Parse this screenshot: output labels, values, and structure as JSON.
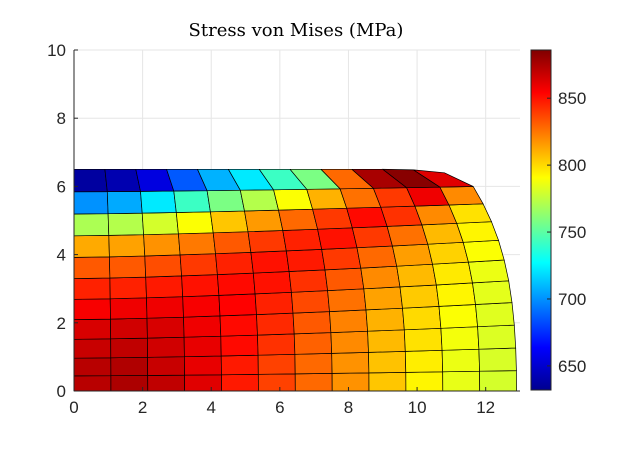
{
  "chart_data": {
    "type": "heatmap",
    "title": "Stress von Mises (MPa)",
    "xlabel": "",
    "ylabel": "",
    "xlim": [
      0,
      13
    ],
    "ylim": [
      0,
      10
    ],
    "x_ticks": [
      "0",
      "2",
      "4",
      "6",
      "8",
      "10",
      "12"
    ],
    "y_ticks": [
      "0",
      "2",
      "4",
      "6",
      "8",
      "10"
    ],
    "grid": true,
    "colormap": "jet",
    "colorbar": {
      "range": [
        632,
        886
      ],
      "ticks": [
        "650",
        "700",
        "750",
        "800",
        "850"
      ]
    },
    "mesh": {
      "description_rows": "rows from y=0 (bottom) to y=6.5 (top); values are element stress (MPa); each row has 12 elements from x=0 rightwards",
      "values": [
        [
          872,
          875,
          870,
          862,
          848,
          838,
          828,
          818,
          805,
          793,
          785,
          780
        ],
        [
          872,
          874,
          868,
          860,
          848,
          838,
          828,
          818,
          806,
          795,
          786,
          781
        ],
        [
          868,
          870,
          866,
          860,
          852,
          842,
          830,
          820,
          808,
          798,
          788,
          782
        ],
        [
          864,
          866,
          864,
          858,
          852,
          844,
          832,
          822,
          810,
          800,
          790,
          783
        ],
        [
          856,
          858,
          858,
          856,
          854,
          846,
          836,
          826,
          814,
          804,
          793,
          784
        ],
        [
          846,
          846,
          848,
          850,
          852,
          850,
          842,
          832,
          820,
          808,
          796,
          786
        ],
        [
          832,
          832,
          835,
          840,
          846,
          850,
          848,
          840,
          828,
          815,
          802,
          790
        ],
        [
          812,
          814,
          818,
          824,
          832,
          840,
          846,
          850,
          840,
          826,
          808,
          793
        ],
        [
          770,
          772,
          780,
          790,
          805,
          816,
          828,
          840,
          852,
          842,
          820,
          798
        ],
        [
          700,
          706,
          722,
          742,
          758,
          772,
          790,
          810,
          826,
          840,
          858,
          820
        ],
        [
          640,
          644,
          656,
          686,
          708,
          722,
          742,
          758,
          828,
          876,
          884,
          862
        ]
      ]
    }
  }
}
